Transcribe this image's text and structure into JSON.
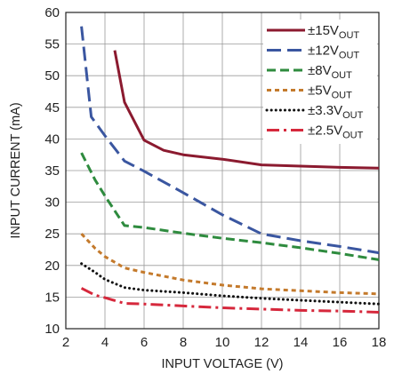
{
  "chart_data": {
    "type": "line",
    "xlabel": "INPUT VOLTAGE (V)",
    "ylabel": "INPUT CURRENT (mA)",
    "xlim": [
      2,
      18
    ],
    "ylim": [
      10,
      60
    ],
    "xticks": [
      2,
      4,
      6,
      8,
      10,
      12,
      14,
      16,
      18
    ],
    "yticks": [
      10,
      15,
      20,
      25,
      30,
      35,
      40,
      45,
      50,
      55,
      60
    ],
    "grid": true,
    "legend_position": "top-right",
    "series": [
      {
        "name": "±15V",
        "name_sub": "OUT",
        "color": "#8b1a2f",
        "dash": "solid",
        "x": [
          4.5,
          5,
          6,
          7,
          8,
          10,
          12,
          14,
          16,
          18
        ],
        "y": [
          54,
          45.8,
          39.8,
          38.2,
          37.5,
          36.8,
          35.9,
          35.7,
          35.5,
          35.4
        ]
      },
      {
        "name": "±12V",
        "name_sub": "OUT",
        "color": "#3a56a0",
        "dash": "long-dash",
        "x": [
          2.8,
          3.3,
          4,
          5,
          6,
          8,
          10,
          12,
          14,
          16,
          18
        ],
        "y": [
          57.8,
          43.5,
          40.5,
          36.5,
          34.9,
          31.5,
          28,
          25,
          23.9,
          23,
          22
        ]
      },
      {
        "name": "±8V",
        "name_sub": "OUT",
        "color": "#2e8b3e",
        "dash": "dash",
        "x": [
          2.8,
          3.5,
          4,
          5,
          6,
          8,
          10,
          12,
          14,
          16,
          18
        ],
        "y": [
          37.8,
          33.5,
          31,
          26.3,
          26,
          25.1,
          24.3,
          23.6,
          22.8,
          21.9,
          20.9
        ]
      },
      {
        "name": "±5V",
        "name_sub": "OUT",
        "color": "#c47a2c",
        "dash": "short-dash",
        "x": [
          2.8,
          3.5,
          4,
          5,
          6,
          8,
          10,
          12,
          14,
          16,
          18
        ],
        "y": [
          25,
          22.7,
          21.4,
          19.6,
          18.9,
          17.7,
          16.9,
          16.3,
          16,
          15.7,
          15.5
        ]
      },
      {
        "name": "±3.3V",
        "name_sub": "OUT",
        "color": "#111111",
        "dash": "dot",
        "x": [
          2.8,
          3.5,
          4,
          5,
          6,
          8,
          10,
          12,
          14,
          16,
          18
        ],
        "y": [
          20.3,
          18.9,
          17.8,
          16.5,
          16.1,
          15.7,
          15.2,
          14.8,
          14.5,
          14.2,
          13.9
        ]
      },
      {
        "name": "±2.5V",
        "name_sub": "OUT",
        "color": "#d6283c",
        "dash": "dash-dot",
        "x": [
          2.8,
          3.5,
          4,
          5,
          6,
          8,
          10,
          12,
          14,
          16,
          18
        ],
        "y": [
          16.4,
          15.3,
          14.9,
          14,
          13.9,
          13.6,
          13.3,
          13.1,
          12.9,
          12.8,
          12.6
        ]
      }
    ]
  }
}
